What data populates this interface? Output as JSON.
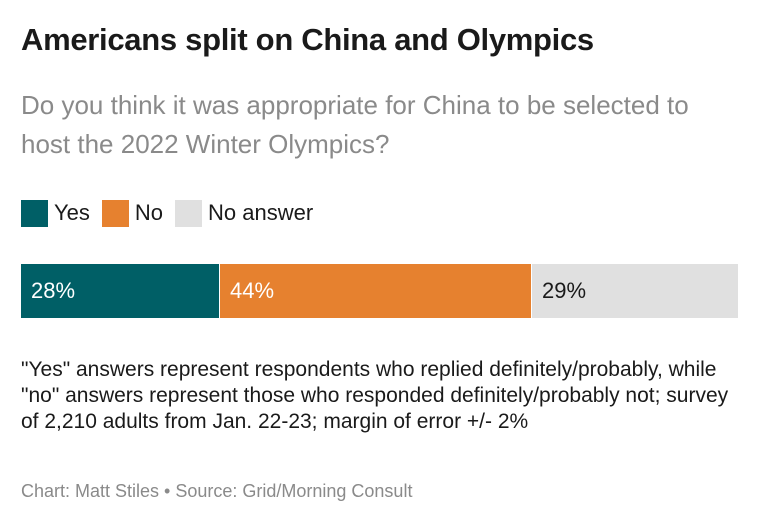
{
  "chart_data": {
    "type": "bar",
    "orientation": "horizontal-stacked",
    "title": "Americans split on China and Olympics",
    "subtitle": "Do you think it was appropriate for China to be selected to host the 2022 Winter Olympics?",
    "series": [
      {
        "name": "Yes",
        "value": 28,
        "label": "28%",
        "color": "#005f66",
        "label_color": "#ffffff"
      },
      {
        "name": "No",
        "value": 44,
        "label": "44%",
        "color": "#e6812f",
        "label_color": "#ffffff"
      },
      {
        "name": "No answer",
        "value": 29,
        "label": "29%",
        "color": "#e0e0e0",
        "label_color": "#1a1a1a"
      }
    ],
    "legend_position": "top-left",
    "note": "\"Yes\" answers represent respondents who replied definitely/probably, while \"no\" answers represent those who responded definitely/probably not; survey of 2,210 adults from Jan. 22-23; margin of error +/- 2%",
    "credit": "Chart: Matt Stiles • Source: Grid/Morning Consult"
  }
}
